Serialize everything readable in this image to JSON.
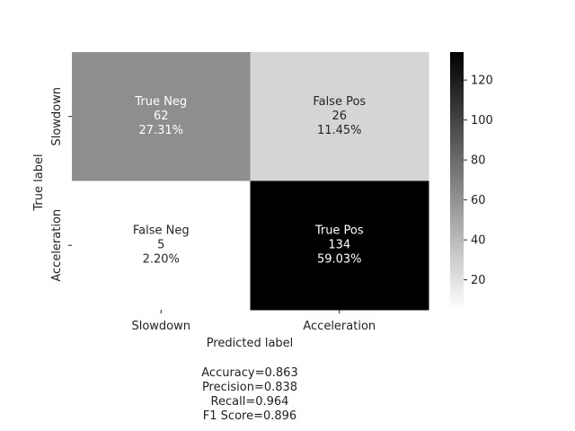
{
  "chart_data": {
    "type": "heatmap",
    "title": "",
    "xlabel": "Predicted label",
    "ylabel": "True label",
    "x_categories": [
      "Slowdown",
      "Acceleration"
    ],
    "y_categories": [
      "Slowdown",
      "Acceleration"
    ],
    "cells": [
      [
        {
          "label": "True Neg",
          "count": "62",
          "percent": "27.31%",
          "value": 62
        },
        {
          "label": "False Pos",
          "count": "26",
          "percent": "11.45%",
          "value": 26
        }
      ],
      [
        {
          "label": "False Neg",
          "count": "5",
          "percent": "2.20%",
          "value": 5
        },
        {
          "label": "True Pos",
          "count": "134",
          "percent": "59.03%",
          "value": 134
        }
      ]
    ],
    "colorbar": {
      "vmin": 5,
      "vmax": 134,
      "ticks": [
        20,
        40,
        60,
        80,
        100,
        120
      ],
      "tick_labels": [
        "20",
        "40",
        "60",
        "80",
        "100",
        "120"
      ],
      "colormap": "Greys"
    },
    "stats": [
      "Accuracy=0.863",
      "Precision=0.838",
      "Recall=0.964",
      "F1 Score=0.896"
    ]
  }
}
